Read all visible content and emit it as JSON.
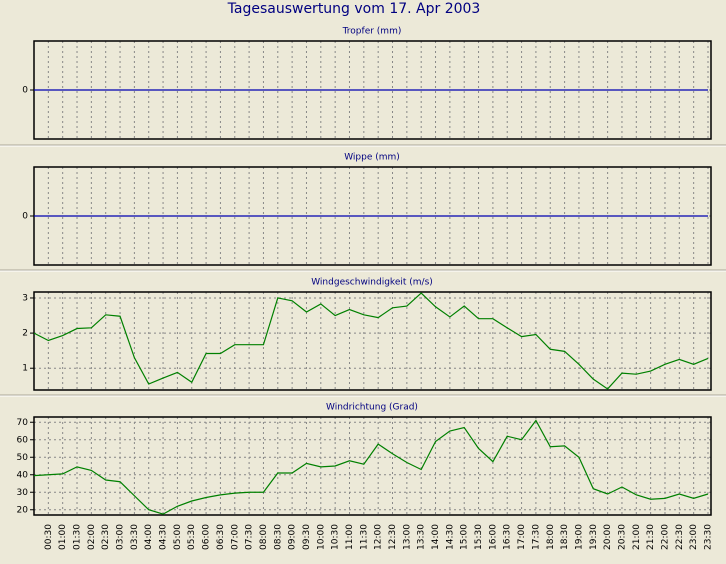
{
  "title": "Tagesauswertung vom 17. Apr 2003",
  "chart_data": [
    {
      "type": "line",
      "title": "Tropfer (mm)",
      "ylim": [
        -1,
        1
      ],
      "yticks": [
        0
      ],
      "grid": true,
      "series": [
        {
          "color": "#0000b0",
          "values": [
            0,
            0,
            0,
            0,
            0,
            0,
            0,
            0,
            0,
            0,
            0,
            0,
            0,
            0,
            0,
            0,
            0,
            0,
            0,
            0,
            0,
            0,
            0,
            0,
            0,
            0,
            0,
            0,
            0,
            0,
            0,
            0,
            0,
            0,
            0,
            0,
            0,
            0,
            0,
            0,
            0,
            0,
            0,
            0,
            0,
            0,
            0,
            0
          ]
        }
      ]
    },
    {
      "type": "line",
      "title": "Wippe (mm)",
      "ylim": [
        -1,
        1
      ],
      "yticks": [
        0
      ],
      "grid": true,
      "series": [
        {
          "color": "#0000b0",
          "values": [
            0,
            0,
            0,
            0,
            0,
            0,
            0,
            0,
            0,
            0,
            0,
            0,
            0,
            0,
            0,
            0,
            0,
            0,
            0,
            0,
            0,
            0,
            0,
            0,
            0,
            0,
            0,
            0,
            0,
            0,
            0,
            0,
            0,
            0,
            0,
            0,
            0,
            0,
            0,
            0,
            0,
            0,
            0,
            0,
            0,
            0,
            0,
            0
          ]
        }
      ]
    },
    {
      "type": "line",
      "title": "Windgeschwindigkeit (m/s)",
      "ylim": [
        0.38,
        3.17
      ],
      "yticks": [
        1,
        2,
        3
      ],
      "grid": true,
      "series": [
        {
          "color": "#008000",
          "values": [
            2.0,
            1.79,
            1.93,
            2.13,
            2.15,
            2.52,
            2.48,
            1.3,
            0.55,
            0.72,
            0.88,
            0.6,
            1.42,
            1.42,
            1.67,
            1.67,
            1.67,
            3.0,
            2.92,
            2.6,
            2.83,
            2.5,
            2.67,
            2.52,
            2.44,
            2.72,
            2.77,
            3.14,
            2.75,
            2.46,
            2.77,
            2.41,
            2.41,
            2.15,
            1.9,
            1.96,
            1.54,
            1.48,
            1.11,
            0.69,
            0.41,
            0.86,
            0.83,
            0.92,
            1.11,
            1.25,
            1.11,
            1.28
          ]
        }
      ]
    },
    {
      "type": "line",
      "title": "Windrichtung (Grad)",
      "ylim": [
        17,
        73
      ],
      "yticks": [
        20,
        30,
        40,
        50,
        60,
        70
      ],
      "grid": true,
      "categories": [
        null,
        "00:30",
        "01:00",
        "01:30",
        "02:00",
        "02:30",
        "03:00",
        "03:30",
        "04:00",
        "04:30",
        "05:00",
        "05:30",
        "06:00",
        "06:30",
        "07:00",
        "07:30",
        "08:00",
        "08:30",
        "09:00",
        "09:30",
        "10:00",
        "10:30",
        "11:00",
        "11:30",
        "12:00",
        "12:30",
        "13:00",
        "13:30",
        "14:00",
        "14:30",
        "15:00",
        "15:30",
        "16:00",
        "16:30",
        "17:00",
        "17:30",
        "18:00",
        "18:30",
        "19:00",
        "19:30",
        "20:00",
        "20:30",
        "21:00",
        "21:30",
        "22:00",
        "22:30",
        "23:00",
        "23:30"
      ],
      "series": [
        {
          "color": "#008000",
          "values": [
            39.5,
            40,
            40.5,
            44.5,
            42.5,
            37,
            36,
            28,
            20,
            17.5,
            22,
            25,
            27,
            28.5,
            29.5,
            30,
            30,
            41,
            41,
            46.5,
            44.5,
            45,
            48,
            46,
            57.5,
            52,
            47,
            43,
            59,
            65,
            67,
            55,
            47.5,
            62,
            60,
            71,
            56,
            56.5,
            50,
            32,
            29,
            33,
            28.5,
            26,
            26.5,
            29,
            26.5,
            29
          ]
        }
      ]
    }
  ]
}
